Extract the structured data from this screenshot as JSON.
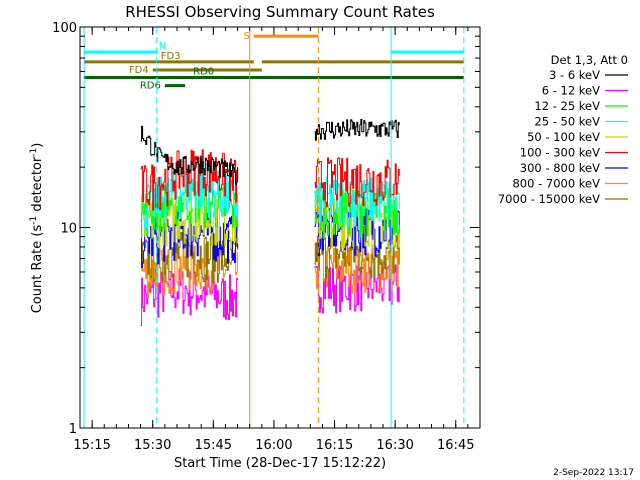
{
  "chart_data": {
    "type": "line",
    "title": "RHESSI Observing Summary Count Rates",
    "xlabel": "Start Time (28-Dec-17 15:12:22)",
    "ylabel_main": "Count Rate (s",
    "ylabel_sup1": "-1",
    "ylabel_mid": " detector",
    "ylabel_sup2": "-1",
    "ylabel_end": ")",
    "ylog": true,
    "ylim": [
      1,
      100
    ],
    "xlim_minutes": [
      15.2,
      16.85
    ],
    "x_ticks": [
      "15:15",
      "15:30",
      "15:45",
      "16:00",
      "16:15",
      "16:30",
      "16:45"
    ],
    "y_ticks": [
      "1",
      "10",
      "100"
    ],
    "legend_header": "Det 1,3, Att 0",
    "legend_placement": "right",
    "series": [
      {
        "name": "3 - 6 keV",
        "color": "#000000",
        "seg1": [
          30,
          22,
          20,
          21,
          20,
          18
        ],
        "seg2": 31
      },
      {
        "name": "6 - 12 keV",
        "color": "#ff00ff",
        "seg1": [
          4.5,
          4.8,
          5.0,
          4.8,
          4.6,
          4.5
        ],
        "seg2": 5.2
      },
      {
        "name": "12 - 25 keV",
        "color": "#00ff00",
        "seg1": [
          12,
          13,
          14,
          14,
          13,
          12
        ],
        "seg2": 12.5
      },
      {
        "name": "25 - 50 keV",
        "color": "#00ffff",
        "seg1": [
          13,
          14,
          15.5,
          16,
          15,
          13
        ],
        "seg2": 14
      },
      {
        "name": "50 - 100 keV",
        "color": "#c8d800",
        "seg1": [
          10.5,
          11,
          11.5,
          11.5,
          11,
          10.5
        ],
        "seg2": 11
      },
      {
        "name": "100 - 300 keV",
        "color": "#ff0000",
        "seg1": [
          16,
          17,
          19,
          20,
          19,
          17
        ],
        "seg2": 17.5
      },
      {
        "name": "300 - 800 keV",
        "color": "#0000ff",
        "seg1": [
          8.5,
          9,
          9.5,
          9.5,
          9.2,
          9
        ],
        "seg2": 10
      },
      {
        "name": "800 - 7000 keV",
        "color": "#ff8c00",
        "seg1": [
          6,
          6.2,
          6.5,
          6.5,
          6.3,
          6
        ],
        "seg2": 6.5
      },
      {
        "name": "7000 - 15000 keV",
        "color": "#8b7500",
        "seg1": [
          7,
          7.2,
          7.5,
          7.5,
          7.2,
          7
        ],
        "seg2": 7.5
      }
    ],
    "data_segments": [
      {
        "start": "15:27",
        "end": "15:51"
      },
      {
        "start": "16:10",
        "end": "16:31"
      }
    ],
    "flags": [
      {
        "label": "N",
        "color": "#00ffff",
        "segments": [
          [
            "15:13",
            "15:31"
          ],
          [
            "16:29",
            "16:47"
          ]
        ],
        "y_value": 75
      },
      {
        "label": "FD3",
        "color": "#8b7500",
        "segments": [
          [
            "15:13",
            "15:55"
          ],
          [
            "15:57",
            "16:47"
          ]
        ],
        "y_value": 67
      },
      {
        "label": "FD4",
        "color": "#8b7500",
        "segments": [
          [
            "15:30",
            "15:57"
          ]
        ],
        "y_value": 61
      },
      {
        "label": "RD0",
        "color": "#006400",
        "segments": [
          [
            "15:13",
            "16:47"
          ]
        ],
        "y_value": 56
      },
      {
        "label": "RD6",
        "color": "#006400",
        "segments": [
          [
            "15:33",
            "15:38"
          ]
        ],
        "y_value": 51
      },
      {
        "label": "S",
        "color": "#ff8c00",
        "segments": [
          [
            "15:55",
            "16:11"
          ]
        ],
        "y_value": 90
      }
    ],
    "verticals": [
      {
        "time": "15:13",
        "color": "#00ffff",
        "style": "solid"
      },
      {
        "time": "15:31",
        "color": "#00ffff",
        "style": "dashed"
      },
      {
        "time": "16:29",
        "color": "#00ffff",
        "style": "solid"
      },
      {
        "time": "16:47",
        "color": "#00ffff",
        "style": "dashed"
      },
      {
        "time": "15:54",
        "color": "#ff8c00",
        "style": "solid"
      },
      {
        "time": "16:11",
        "color": "#ff8c00",
        "style": "dashed"
      }
    ]
  },
  "timestamp": "2-Sep-2022 13:17"
}
